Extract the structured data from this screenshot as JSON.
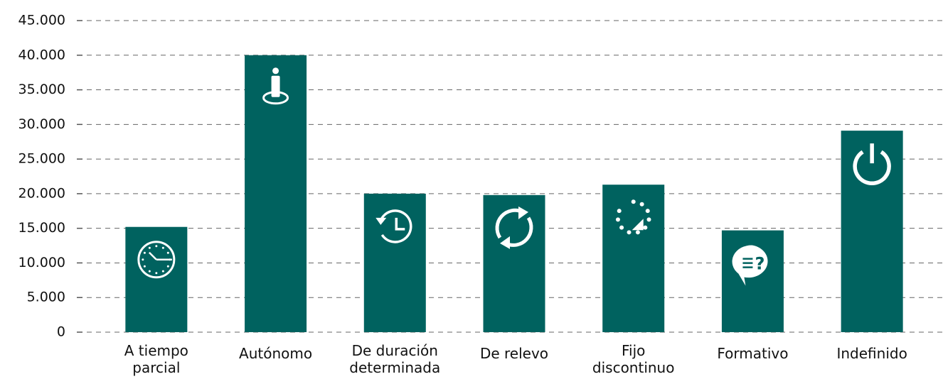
{
  "chart_data": {
    "type": "bar",
    "categories": [
      "A tiempo parcial",
      "Autónomo",
      "De duración determinada",
      "De relevo",
      "Fijo discontinuo",
      "Formativo",
      "Indefinido"
    ],
    "values": [
      15200,
      40000,
      20000,
      19800,
      21300,
      14700,
      29100
    ],
    "color": "#00625f",
    "ylim": [
      0,
      45000
    ],
    "yticks": [
      0,
      {
        "value": 5000,
        "label": "5.000"
      },
      {
        "value": 10000,
        "label": "10.000"
      },
      {
        "value": 15000,
        "label": "15.000"
      },
      {
        "value": 20000,
        "label": "20.000"
      },
      {
        "value": 25000,
        "label": "25.000"
      },
      {
        "value": 30000,
        "label": "30.000"
      },
      {
        "value": 35000,
        "label": "35.000"
      },
      {
        "value": 40000,
        "label": "40.000"
      },
      {
        "value": 45000,
        "label": "45.000"
      }
    ],
    "grid": true
  }
}
